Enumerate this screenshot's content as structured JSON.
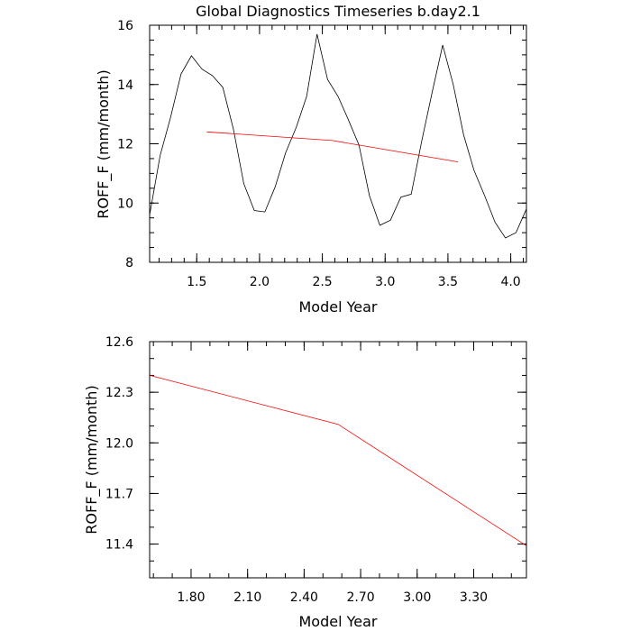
{
  "page": {
    "title": "Global Diagnostics Timeseries b.day2.1"
  },
  "chart_data": [
    {
      "type": "line",
      "title": "Global Diagnostics Timeseries b.day2.1",
      "xlabel": "Model Year",
      "ylabel": "ROFF_F (mm/month)",
      "xlim": [
        1.125,
        4.125
      ],
      "ylim": [
        8,
        16
      ],
      "x_ticks": [
        1.5,
        2.0,
        2.5,
        3.0,
        3.5,
        4.0
      ],
      "x_tick_labels": [
        "1.5",
        "2.0",
        "2.5",
        "3.0",
        "3.5",
        "4.0"
      ],
      "y_ticks": [
        8,
        10,
        12,
        14,
        16
      ],
      "y_tick_labels": [
        "8",
        "10",
        "12",
        "14",
        "16"
      ],
      "series": [
        {
          "color": "#000000",
          "x": [
            1.125,
            1.208,
            1.292,
            1.375,
            1.458,
            1.542,
            1.625,
            1.708,
            1.792,
            1.875,
            1.958,
            2.042,
            2.125,
            2.208,
            2.292,
            2.375,
            2.458,
            2.542,
            2.625,
            2.708,
            2.792,
            2.875,
            2.958,
            3.042,
            3.125,
            3.208,
            3.292,
            3.375,
            3.458,
            3.542,
            3.625,
            3.708,
            3.792,
            3.875,
            3.958,
            4.042,
            4.125
          ],
          "y": [
            9.6,
            11.6,
            12.9,
            14.35,
            14.97,
            14.52,
            14.3,
            13.9,
            12.5,
            10.65,
            9.75,
            9.7,
            10.55,
            11.7,
            12.55,
            13.6,
            15.7,
            14.17,
            13.6,
            12.8,
            11.95,
            10.25,
            9.25,
            9.42,
            10.2,
            10.3,
            12.1,
            13.75,
            15.33,
            14.0,
            12.3,
            11.1,
            10.25,
            9.35,
            8.82,
            9.0,
            9.8
          ]
        },
        {
          "color": "#ff0000",
          "x": [
            1.58,
            2.58,
            3.58
          ],
          "y": [
            12.4,
            12.11,
            11.39
          ]
        }
      ]
    },
    {
      "type": "line",
      "title": "",
      "xlabel": "Model Year",
      "ylabel": "ROFF_F (mm/month)",
      "xlim": [
        1.58,
        3.58
      ],
      "ylim": [
        11.2,
        12.6
      ],
      "x_ticks": [
        1.8,
        2.1,
        2.4,
        2.7,
        3.0,
        3.3
      ],
      "x_tick_labels": [
        "1.80",
        "2.10",
        "2.40",
        "2.70",
        "3.00",
        "3.30"
      ],
      "y_ticks": [
        11.4,
        11.7,
        12.0,
        12.3,
        12.6
      ],
      "y_tick_labels": [
        "11.4",
        "11.7",
        "12.0",
        "12.3",
        "12.6"
      ],
      "series": [
        {
          "color": "#ff0000",
          "x": [
            1.58,
            2.58,
            3.58
          ],
          "y": [
            12.4,
            12.11,
            11.39
          ]
        }
      ]
    }
  ]
}
